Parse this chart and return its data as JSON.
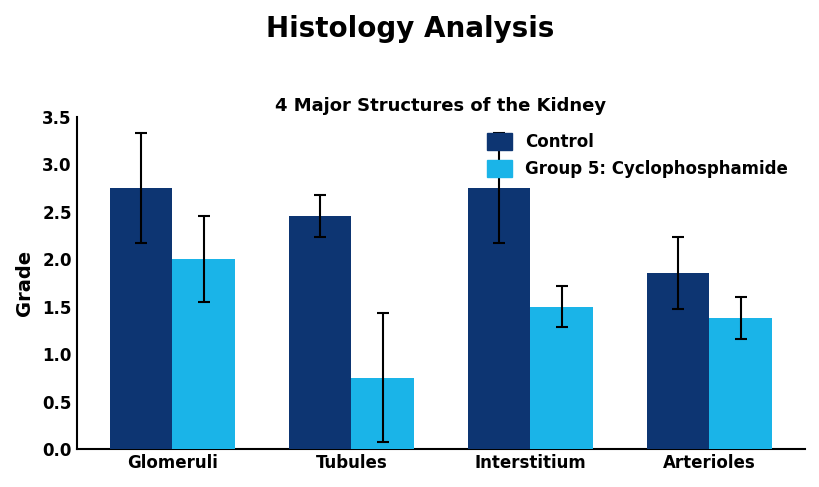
{
  "title": "Histology Analysis",
  "subtitle": "4 Major Structures of the Kidney",
  "ylabel": "Grade",
  "categories": [
    "Glomeruli",
    "Tubules",
    "Interstitium",
    "Arterioles"
  ],
  "control_values": [
    2.75,
    2.45,
    2.75,
    1.85
  ],
  "cyclo_values": [
    2.0,
    0.75,
    1.5,
    1.38
  ],
  "control_errors": [
    0.58,
    0.22,
    0.58,
    0.38
  ],
  "cyclo_errors": [
    0.45,
    0.68,
    0.22,
    0.22
  ],
  "control_color": "#0d3572",
  "cyclo_color": "#1ab4e8",
  "legend_labels": [
    "Control",
    "Group 5: Cyclophosphamide"
  ],
  "ylim": [
    0,
    3.5
  ],
  "yticks": [
    0.0,
    0.5,
    1.0,
    1.5,
    2.0,
    2.5,
    3.0,
    3.5
  ],
  "background_color": "#ffffff",
  "title_fontsize": 20,
  "subtitle_fontsize": 13,
  "axis_label_fontsize": 14,
  "tick_fontsize": 12,
  "legend_fontsize": 12,
  "bar_width": 0.35
}
